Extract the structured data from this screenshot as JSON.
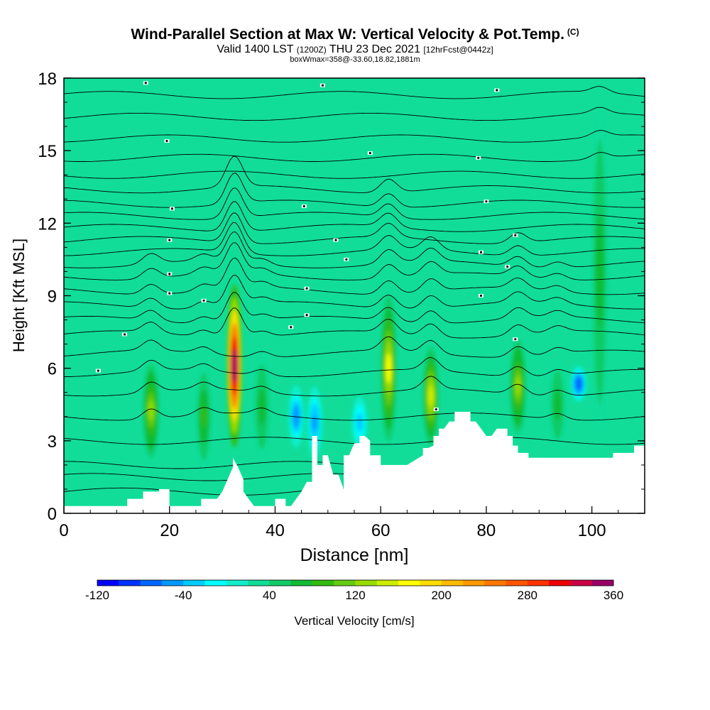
{
  "title": {
    "main": "Wind-Parallel Section at Max W: Vertical Velocity & Pot.Temp.",
    "copyright": "(C)",
    "valid_prefix": "Valid 1400 LST",
    "utc": "(1200Z)",
    "date": "THU 23 Dec 2021",
    "forecast": "[12hrFcst@0442z]",
    "box_info": "boxWmax=358@-33.60,18.82,1881m"
  },
  "chart_data": {
    "type": "heatmap",
    "xlabel": "Distance [nm]",
    "ylabel": "Height [Kft MSL]",
    "xlim": [
      0,
      110
    ],
    "ylim": [
      0,
      18
    ],
    "x_ticks": [
      0,
      20,
      40,
      60,
      80,
      100
    ],
    "y_ticks": [
      0,
      3,
      6,
      9,
      12,
      15,
      18
    ],
    "colorbar": {
      "label": "Vertical Velocity [cm/s]",
      "min": -120,
      "max": 360,
      "step": 20,
      "tick_labels": [
        -120,
        -40,
        40,
        120,
        200,
        280,
        360
      ],
      "colors": [
        "#0000ff",
        "#0033ff",
        "#0066ff",
        "#0099ff",
        "#00ccff",
        "#00ffff",
        "#11eecc",
        "#11dd99",
        "#11cc66",
        "#11bb33",
        "#33bb11",
        "#66cc11",
        "#99dd00",
        "#ccee00",
        "#ffff00",
        "#ffdd00",
        "#ffbb00",
        "#ff9900",
        "#ff7700",
        "#ff5500",
        "#ff3300",
        "#ee0000",
        "#cc0044",
        "#990066"
      ]
    },
    "background_value_cm_s": 30,
    "updrafts": [
      {
        "x": 16.5,
        "z_bottom": 2.0,
        "z_top": 6.5,
        "w_max": 120
      },
      {
        "x": 26.5,
        "z_bottom": 1.5,
        "z_top": 6.5,
        "w_max": 80
      },
      {
        "x": 32.3,
        "z_bottom": 2.2,
        "z_top": 10.0,
        "w_max": 358
      },
      {
        "x": 37.5,
        "z_bottom": 2.0,
        "z_top": 6.8,
        "w_max": 70
      },
      {
        "x": 61.5,
        "z_bottom": 2.5,
        "z_top": 9.5,
        "w_max": 160
      },
      {
        "x": 69.5,
        "z_bottom": 2.5,
        "z_top": 7.2,
        "w_max": 150
      },
      {
        "x": 86.0,
        "z_bottom": 3.0,
        "z_top": 7.5,
        "w_max": 120
      },
      {
        "x": 93.5,
        "z_bottom": 2.5,
        "z_top": 6.5,
        "w_max": 70
      },
      {
        "x": 101.5,
        "z_bottom": 2.5,
        "z_top": 17.5,
        "w_max": 70
      }
    ],
    "downdrafts": [
      {
        "x": 44.0,
        "z_bottom": 2.5,
        "z_top": 5.5,
        "w_min": -60
      },
      {
        "x": 47.5,
        "z_bottom": 2.0,
        "z_top": 5.5,
        "w_min": -50
      },
      {
        "x": 56.0,
        "z_bottom": 2.5,
        "z_top": 5.0,
        "w_min": -40
      },
      {
        "x": 97.5,
        "z_bottom": 4.5,
        "z_top": 6.2,
        "w_min": -80
      }
    ],
    "terrain": {
      "x": [
        0,
        12,
        12,
        13,
        15,
        15,
        18,
        18,
        20,
        20,
        21,
        22,
        26,
        26,
        29,
        30,
        31,
        32,
        32,
        33,
        34,
        34,
        35,
        36,
        37,
        38,
        40,
        40,
        42,
        42,
        43,
        44,
        45,
        46,
        47,
        47,
        48,
        48,
        49,
        49,
        50,
        51,
        52,
        53,
        53,
        54,
        55,
        56,
        56,
        57,
        58,
        58,
        60,
        60,
        65,
        68,
        68,
        69,
        70,
        70,
        71,
        71,
        72,
        73,
        74,
        74,
        77,
        77,
        78,
        79,
        80,
        81,
        82,
        82,
        84,
        84,
        85,
        85,
        86,
        86,
        88,
        88,
        91,
        91,
        92,
        92,
        95,
        95,
        99,
        99,
        100,
        100,
        104,
        104,
        108,
        108,
        110,
        110
      ],
      "z": [
        0.3,
        0.3,
        0.6,
        0.6,
        0.6,
        0.9,
        0.9,
        1.0,
        1.0,
        0.3,
        0.3,
        0.3,
        0.3,
        0.6,
        0.6,
        0.9,
        1.4,
        1.9,
        2.3,
        1.9,
        1.4,
        0.9,
        0.6,
        0.3,
        0.3,
        0.3,
        0.3,
        0.6,
        0.6,
        0.3,
        0.3,
        0.6,
        0.9,
        1.3,
        1.3,
        3.2,
        3.2,
        2.0,
        2.0,
        2.4,
        2.4,
        1.6,
        1.6,
        1.0,
        2.4,
        2.4,
        2.9,
        2.9,
        3.2,
        3.2,
        3.0,
        2.4,
        2.4,
        2.0,
        2.0,
        2.4,
        2.7,
        2.7,
        2.8,
        3.2,
        3.2,
        3.5,
        3.5,
        3.8,
        3.8,
        4.2,
        4.2,
        3.8,
        3.8,
        3.5,
        3.2,
        3.2,
        3.5,
        3.5,
        3.5,
        3.2,
        3.2,
        2.8,
        2.8,
        2.5,
        2.5,
        2.3,
        2.3,
        2.3,
        2.3,
        2.3,
        2.3,
        2.3,
        2.3,
        2.3,
        2.3,
        2.3,
        2.3,
        2.5,
        2.5,
        2.8,
        2.8,
        3.0
      ]
    },
    "isentrope_heights": [
      0.9,
      1.5,
      2.0,
      3.0,
      4.0,
      5.0,
      5.8,
      6.6,
      7.4,
      8.0,
      8.6,
      9.2,
      9.8,
      10.3,
      10.8,
      11.3,
      11.8,
      12.3,
      12.8,
      13.4,
      14.0,
      14.7,
      15.5,
      16.4,
      17.3
    ],
    "isentrope_labels": [
      {
        "x": 6.5,
        "z": 5.9
      },
      {
        "x": 11.5,
        "z": 7.4
      },
      {
        "x": 20.0,
        "z": 9.1
      },
      {
        "x": 20.0,
        "z": 9.9
      },
      {
        "x": 20.0,
        "z": 11.3
      },
      {
        "x": 20.5,
        "z": 12.6
      },
      {
        "x": 19.5,
        "z": 15.4
      },
      {
        "x": 15.5,
        "z": 17.8
      },
      {
        "x": 26.5,
        "z": 8.8
      },
      {
        "x": 43.0,
        "z": 7.7
      },
      {
        "x": 46.0,
        "z": 8.2
      },
      {
        "x": 46.0,
        "z": 9.3
      },
      {
        "x": 53.5,
        "z": 10.5
      },
      {
        "x": 51.5,
        "z": 11.3
      },
      {
        "x": 45.5,
        "z": 12.7
      },
      {
        "x": 58.0,
        "z": 14.9
      },
      {
        "x": 49.0,
        "z": 17.7
      },
      {
        "x": 70.5,
        "z": 4.3
      },
      {
        "x": 79.0,
        "z": 9.0
      },
      {
        "x": 84.0,
        "z": 10.2
      },
      {
        "x": 79.0,
        "z": 10.8
      },
      {
        "x": 85.5,
        "z": 11.5
      },
      {
        "x": 80.0,
        "z": 12.9
      },
      {
        "x": 78.5,
        "z": 14.7
      },
      {
        "x": 82.0,
        "z": 17.5
      },
      {
        "x": 85.5,
        "z": 7.2
      }
    ]
  }
}
